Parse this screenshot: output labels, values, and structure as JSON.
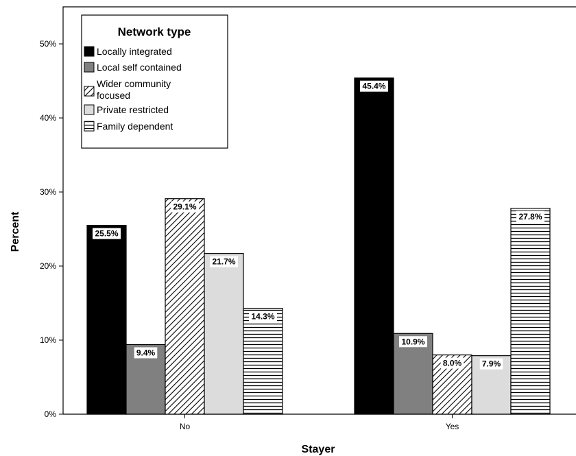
{
  "chart_data": {
    "type": "bar",
    "xlabel": "Stayer",
    "ylabel": "Percent",
    "categories": [
      "No",
      "Yes"
    ],
    "ylim": [
      0,
      55
    ],
    "yticks": [
      "0%",
      "10%",
      "20%",
      "30%",
      "40%",
      "50%"
    ],
    "legend": {
      "title": "Network type",
      "placement": "top-left"
    },
    "series": [
      {
        "name": "Locally integrated",
        "values": [
          25.5,
          45.4
        ],
        "labels": [
          "25.5%",
          "45.4%"
        ],
        "fill": "#000000",
        "pattern": "solid"
      },
      {
        "name": "Local self contained",
        "values": [
          9.4,
          10.9
        ],
        "labels": [
          "9.4%",
          "10.9%"
        ],
        "fill": "#808080",
        "pattern": "solid"
      },
      {
        "name": "Wider community focused",
        "legend_lines": [
          "Wider community",
          "focused"
        ],
        "values": [
          29.1,
          8.0
        ],
        "labels": [
          "29.1%",
          "8.0%"
        ],
        "fill": "#ffffff",
        "pattern": "diagonal"
      },
      {
        "name": "Private restricted",
        "values": [
          21.7,
          7.9
        ],
        "labels": [
          "21.7%",
          "7.9%"
        ],
        "fill": "#dcdcdc",
        "pattern": "solid"
      },
      {
        "name": "Family dependent",
        "values": [
          14.3,
          27.8
        ],
        "labels": [
          "14.3%",
          "27.8%"
        ],
        "fill": "#ffffff",
        "pattern": "horizontal"
      }
    ],
    "grid": false
  }
}
